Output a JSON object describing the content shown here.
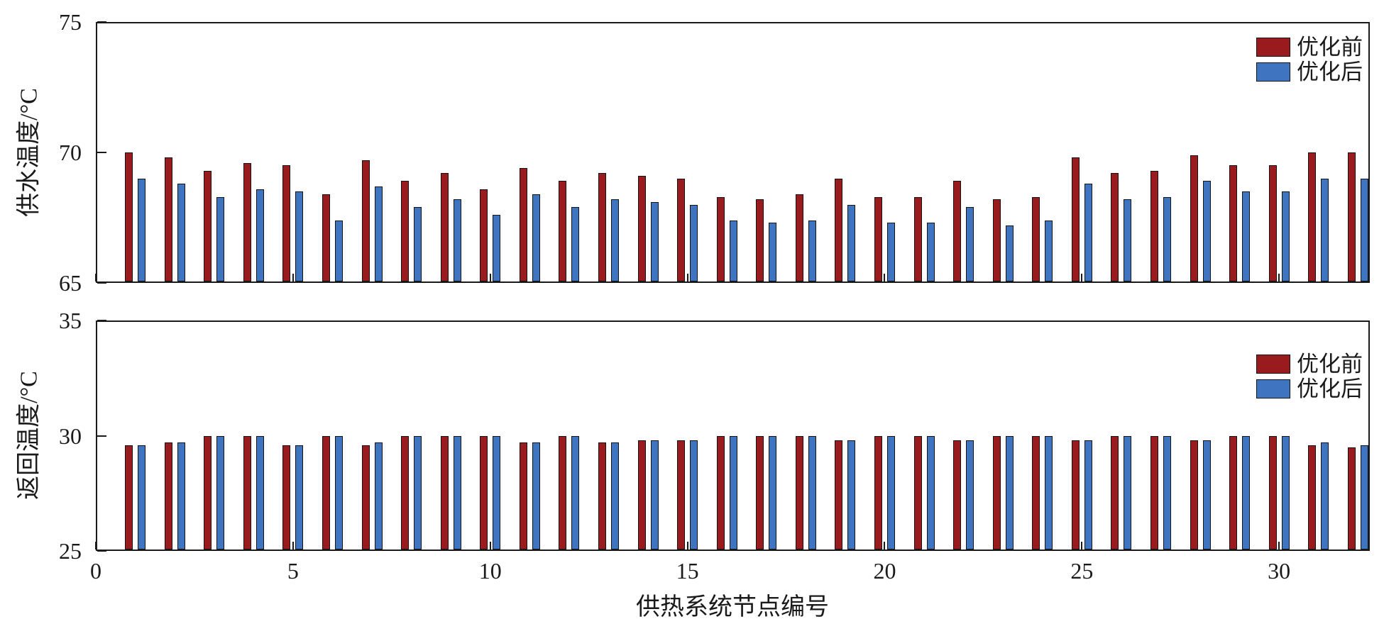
{
  "figure": {
    "background": "#ffffff"
  },
  "colors": {
    "before": "#991b1e",
    "after": "#3f74c0",
    "axis": "#1a1a1a"
  },
  "legend": {
    "items": [
      {
        "label": "优化前",
        "color_key": "before"
      },
      {
        "label": "优化后",
        "color_key": "after"
      }
    ]
  },
  "xlabel": "供热系统节点编号",
  "x_ticks": [
    0,
    5,
    10,
    15,
    20,
    25,
    30
  ],
  "chart_data": [
    {
      "type": "bar",
      "title": "",
      "ylabel": "供水温度/°C",
      "xlabel": "供热系统节点编号",
      "ylim": [
        65,
        75
      ],
      "yticks": [
        65,
        70,
        75
      ],
      "xlim": [
        0,
        32.3
      ],
      "grid": false,
      "legend_position": "upper-right",
      "x": [
        1,
        2,
        3,
        4,
        5,
        6,
        7,
        8,
        9,
        10,
        11,
        12,
        13,
        14,
        15,
        16,
        17,
        18,
        19,
        20,
        21,
        22,
        23,
        24,
        25,
        26,
        27,
        28,
        29,
        30,
        31,
        32
      ],
      "series": [
        {
          "name": "优化前",
          "values": [
            70.0,
            69.8,
            69.3,
            69.6,
            69.5,
            68.4,
            69.7,
            68.9,
            69.2,
            68.6,
            69.4,
            68.9,
            69.2,
            69.1,
            69.0,
            68.3,
            68.2,
            68.4,
            69.0,
            68.3,
            68.3,
            68.9,
            68.2,
            68.3,
            69.8,
            69.2,
            69.3,
            69.9,
            69.5,
            69.5,
            70.0,
            70.0
          ]
        },
        {
          "name": "优化后",
          "values": [
            69.0,
            68.8,
            68.3,
            68.6,
            68.5,
            67.4,
            68.7,
            67.9,
            68.2,
            67.6,
            68.4,
            67.9,
            68.2,
            68.1,
            68.0,
            67.4,
            67.3,
            67.4,
            68.0,
            67.3,
            67.3,
            67.9,
            67.2,
            67.4,
            68.8,
            68.2,
            68.3,
            68.9,
            68.5,
            68.5,
            69.0,
            69.0
          ]
        }
      ]
    },
    {
      "type": "bar",
      "title": "",
      "ylabel": "返回温度/°C",
      "xlabel": "供热系统节点编号",
      "ylim": [
        25,
        35
      ],
      "yticks": [
        25,
        30,
        35
      ],
      "xlim": [
        0,
        32.3
      ],
      "grid": false,
      "legend_position": "upper-right",
      "x": [
        1,
        2,
        3,
        4,
        5,
        6,
        7,
        8,
        9,
        10,
        11,
        12,
        13,
        14,
        15,
        16,
        17,
        18,
        19,
        20,
        21,
        22,
        23,
        24,
        25,
        26,
        27,
        28,
        29,
        30,
        31,
        32
      ],
      "series": [
        {
          "name": "优化前",
          "values": [
            29.6,
            29.7,
            30.0,
            30.0,
            29.6,
            30.0,
            29.6,
            30.0,
            30.0,
            30.0,
            29.7,
            30.0,
            29.7,
            29.8,
            29.8,
            30.0,
            30.0,
            30.0,
            29.8,
            30.0,
            30.0,
            29.8,
            30.0,
            30.0,
            29.8,
            30.0,
            30.0,
            29.8,
            30.0,
            30.0,
            29.6,
            29.5
          ]
        },
        {
          "name": "优化后",
          "values": [
            29.6,
            29.7,
            30.0,
            30.0,
            29.6,
            30.0,
            29.7,
            30.0,
            30.0,
            30.0,
            29.7,
            30.0,
            29.7,
            29.8,
            29.8,
            30.0,
            30.0,
            30.0,
            29.8,
            30.0,
            30.0,
            29.8,
            30.0,
            30.0,
            29.8,
            30.0,
            30.0,
            29.8,
            30.0,
            30.0,
            29.7,
            29.6
          ]
        }
      ]
    }
  ]
}
